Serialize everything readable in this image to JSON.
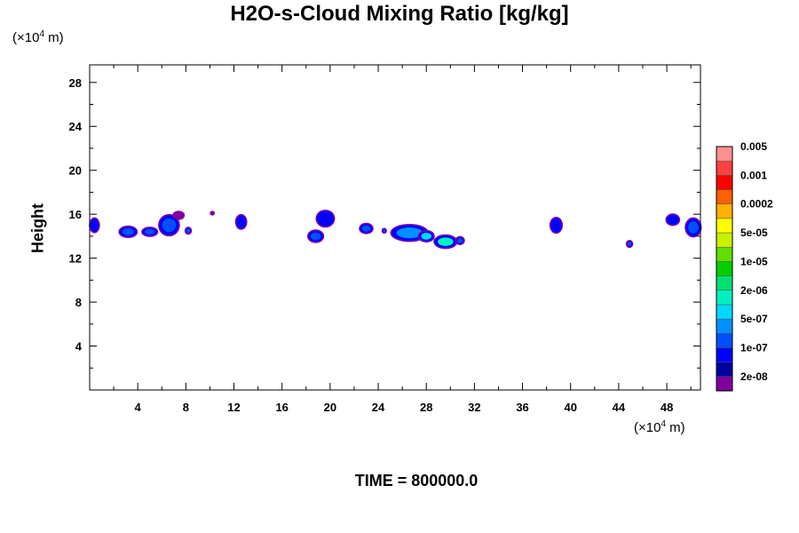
{
  "chart_data": {
    "type": "heatmap",
    "title": "H2O-s-Cloud Mixing Ratio [kg/kg]",
    "ylabel": "Height",
    "xlabel": "",
    "x_unit": {
      "prefix": "(×10",
      "exp": "4",
      "suffix": " m)"
    },
    "y_unit": {
      "prefix": "(×10",
      "exp": "4",
      "suffix": " m)"
    },
    "xlim": [
      0,
      50.8
    ],
    "ylim": [
      0,
      29.6
    ],
    "xticks": [
      4,
      8,
      12,
      16,
      20,
      24,
      28,
      32,
      36,
      40,
      44,
      48
    ],
    "yticks": [
      4,
      8,
      12,
      16,
      20,
      24,
      28
    ],
    "grid": false,
    "legend": {
      "placement": "right",
      "colors": [
        "#8000a0",
        "#0000a0",
        "#0000ff",
        "#0050ff",
        "#0090ff",
        "#00d8ff",
        "#00f0c0",
        "#00e070",
        "#00d000",
        "#60e000",
        "#c8f000",
        "#ffff00",
        "#ffb000",
        "#ff6000",
        "#ff0000",
        "#ff4040",
        "#ff9090"
      ],
      "labels": [
        "2e-08",
        "1e-07",
        "5e-07",
        "2e-06",
        "1e-05",
        "5e-05",
        "0.0002",
        "0.001",
        "0.005"
      ]
    },
    "cloud_regions": [
      {
        "x": 0.4,
        "y": 15.0,
        "rx": 0.35,
        "ry": 0.6,
        "level": 1,
        "label": ""
      },
      {
        "x": 3.2,
        "y": 14.4,
        "rx": 0.7,
        "ry": 0.45,
        "level": 2,
        "label": ""
      },
      {
        "x": 5.0,
        "y": 14.4,
        "rx": 0.6,
        "ry": 0.35,
        "level": 2,
        "label": ""
      },
      {
        "x": 6.6,
        "y": 15.0,
        "rx": 0.8,
        "ry": 0.9,
        "level": 2,
        "label": ""
      },
      {
        "x": 7.4,
        "y": 15.9,
        "rx": 0.4,
        "ry": 0.3,
        "level": 0,
        "label": ""
      },
      {
        "x": 8.2,
        "y": 14.5,
        "rx": 0.2,
        "ry": 0.25,
        "level": 2,
        "label": ""
      },
      {
        "x": 10.2,
        "y": 16.1,
        "rx": 0.1,
        "ry": 0.1,
        "level": 0,
        "label": ""
      },
      {
        "x": 12.6,
        "y": 15.3,
        "rx": 0.4,
        "ry": 0.6,
        "level": 1,
        "label": ""
      },
      {
        "x": 19.6,
        "y": 15.6,
        "rx": 0.7,
        "ry": 0.7,
        "level": 1,
        "label": ""
      },
      {
        "x": 18.8,
        "y": 14.0,
        "rx": 0.6,
        "ry": 0.5,
        "level": 2,
        "label": ""
      },
      {
        "x": 23.0,
        "y": 14.7,
        "rx": 0.5,
        "ry": 0.4,
        "level": 2,
        "label": ""
      },
      {
        "x": 24.5,
        "y": 14.5,
        "rx": 0.12,
        "ry": 0.15,
        "level": 2,
        "label": ""
      },
      {
        "x": 26.6,
        "y": 14.3,
        "rx": 1.5,
        "ry": 0.7,
        "level": 3,
        "label": ""
      },
      {
        "x": 28.0,
        "y": 14.0,
        "rx": 0.6,
        "ry": 0.45,
        "level": 4,
        "label": ""
      },
      {
        "x": 29.6,
        "y": 13.5,
        "rx": 0.9,
        "ry": 0.55,
        "level": 5,
        "label": ""
      },
      {
        "x": 30.8,
        "y": 13.6,
        "rx": 0.3,
        "ry": 0.3,
        "level": 2,
        "label": ""
      },
      {
        "x": 38.8,
        "y": 15.0,
        "rx": 0.45,
        "ry": 0.65,
        "level": 1,
        "label": ""
      },
      {
        "x": 44.9,
        "y": 13.3,
        "rx": 0.2,
        "ry": 0.25,
        "level": 2,
        "label": ""
      },
      {
        "x": 48.5,
        "y": 15.5,
        "rx": 0.5,
        "ry": 0.45,
        "level": 1,
        "label": ""
      },
      {
        "x": 50.2,
        "y": 14.8,
        "rx": 0.6,
        "ry": 0.8,
        "level": 2,
        "label": ""
      }
    ]
  },
  "footer": {
    "time_label": "TIME = 800000.0"
  }
}
